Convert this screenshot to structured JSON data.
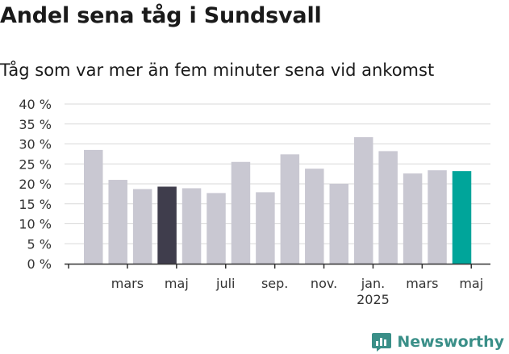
{
  "header": {
    "title": "Andel sena tåg i Sundsvall",
    "subtitle": "Tåg som var mer än fem minuter sena vid ankomst"
  },
  "brand": {
    "name": "Newsworthy",
    "logo_icon": "bar-chart-logo-icon",
    "color": "#3a8f88"
  },
  "colors": {
    "bar_default": "#c9c8d2",
    "bar_highlight_dark": "#3f3d4c",
    "bar_highlight_current": "#00a59a",
    "grid": "#d9d9d9",
    "axis": "#333333"
  },
  "chart_data": {
    "type": "bar",
    "values": [
      28.5,
      21,
      18.7,
      19.3,
      18.9,
      17.7,
      25.5,
      17.9,
      27.4,
      23.8,
      20,
      31.7,
      28.2,
      22.6,
      23.4,
      23.2
    ],
    "highlight": {
      "3": "dark",
      "15": "current"
    },
    "x_tick_labels": [
      {
        "bar": 1.5,
        "lines": [
          "mars"
        ]
      },
      {
        "bar": 3.5,
        "lines": [
          "maj"
        ]
      },
      {
        "bar": 5.5,
        "lines": [
          "juli"
        ]
      },
      {
        "bar": 7.5,
        "lines": [
          "sep."
        ]
      },
      {
        "bar": 9.5,
        "lines": [
          "nov."
        ]
      },
      {
        "bar": 11.5,
        "lines": [
          "jan.",
          "2025"
        ]
      },
      {
        "bar": 13.5,
        "lines": [
          "mars"
        ]
      },
      {
        "bar": 15.5,
        "lines": [
          "maj"
        ]
      }
    ],
    "ylim": [
      0,
      40
    ],
    "y_ticks": [
      0,
      5,
      10,
      15,
      20,
      25,
      30,
      35,
      40
    ],
    "y_tick_labels": [
      "0 %",
      "5 %",
      "10 %",
      "15 %",
      "20 %",
      "25 %",
      "30 %",
      "35 %",
      "40 %"
    ],
    "grid": true,
    "xlabel": "",
    "ylabel": ""
  }
}
